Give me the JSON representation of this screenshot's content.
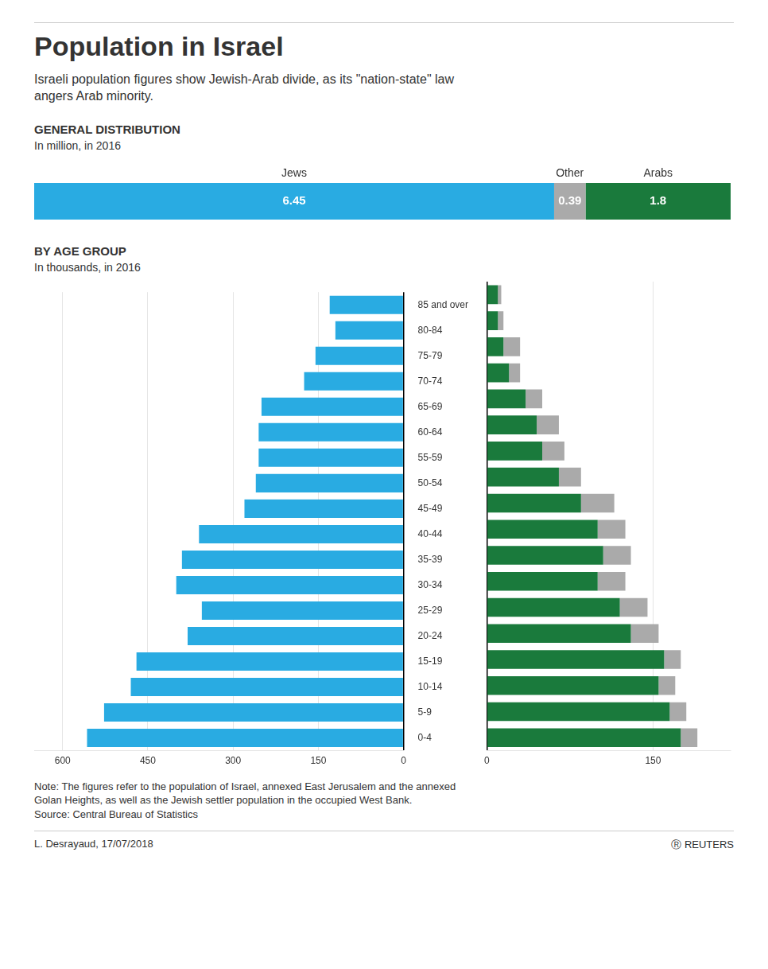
{
  "title": "Population in Israel",
  "subtitle": "Israeli population figures show Jewish-Arab divide, as its \"nation-state\" law\nangers Arab minority.",
  "annotations": [
    "Note: The figures refer to the population of Israel, annexed East Jerusalem and the annexed\nGolan Heights, as well as the Jewish settler population in the occupied West Bank.\nSource: Central Bureau of Statistics",
    "L. Desrayaud, 17/07/2018",
    "Ⓡ REUTERS"
  ],
  "chart_data": [
    {
      "type": "bar",
      "orientation": "horizontal",
      "stacked": true,
      "title": "GENERAL DISTRIBUTION",
      "subtitle": "In million, in 2016",
      "series": [
        {
          "name": "Jews",
          "color": "#29ABE2",
          "values": [
            6.45
          ]
        },
        {
          "name": "Other",
          "color": "#AAAAAA",
          "values": [
            0.39
          ]
        },
        {
          "name": "Arabs",
          "color": "#1A7A3C",
          "values": [
            1.8
          ]
        }
      ],
      "xlim": [
        0,
        8.64
      ],
      "data_labels": true,
      "tick_labels": false,
      "grid": false
    },
    {
      "type": "bar",
      "orientation": "horizontal",
      "title": "BY AGE GROUP",
      "subtitle": "In thousands, in 2016",
      "categories": [
        "0-4",
        "5-9",
        "10-14",
        "15-19",
        "20-24",
        "25-29",
        "30-34",
        "35-39",
        "40-44",
        "45-49",
        "50-54",
        "55-59",
        "60-64",
        "65-69",
        "70-74",
        "75-79",
        "80-84",
        "85 and over"
      ],
      "series": [
        {
          "name": "Jews",
          "color": "#29ABE2",
          "values": [
            557,
            527,
            480,
            470,
            380,
            355,
            400,
            390,
            360,
            280,
            260,
            255,
            255,
            250,
            175,
            155,
            120,
            130
          ]
        }
      ],
      "xlim": [
        650,
        0
      ],
      "xticks": [
        600,
        450,
        300,
        150,
        0
      ],
      "grid": true
    },
    {
      "type": "bar",
      "orientation": "horizontal",
      "stacked": true,
      "categories": [
        "0-4",
        "5-9",
        "10-14",
        "15-19",
        "20-24",
        "25-29",
        "30-34",
        "35-39",
        "40-44",
        "45-49",
        "50-54",
        "55-59",
        "60-64",
        "65-69",
        "70-74",
        "75-79",
        "80-84",
        "85 and over"
      ],
      "series": [
        {
          "name": "Arabs",
          "color": "#1A7A3C",
          "values": [
            175,
            165,
            155,
            160,
            130,
            120,
            100,
            105,
            100,
            85,
            65,
            50,
            45,
            35,
            20,
            15,
            10,
            10
          ]
        },
        {
          "name": "Other",
          "color": "#AAAAAA",
          "values": [
            15,
            15,
            15,
            15,
            25,
            25,
            25,
            25,
            25,
            30,
            20,
            20,
            20,
            15,
            10,
            15,
            5,
            3
          ]
        }
      ],
      "xlim": [
        0,
        220
      ],
      "xticks": [
        0,
        150
      ],
      "grid": true,
      "tick_labels": "x"
    }
  ]
}
